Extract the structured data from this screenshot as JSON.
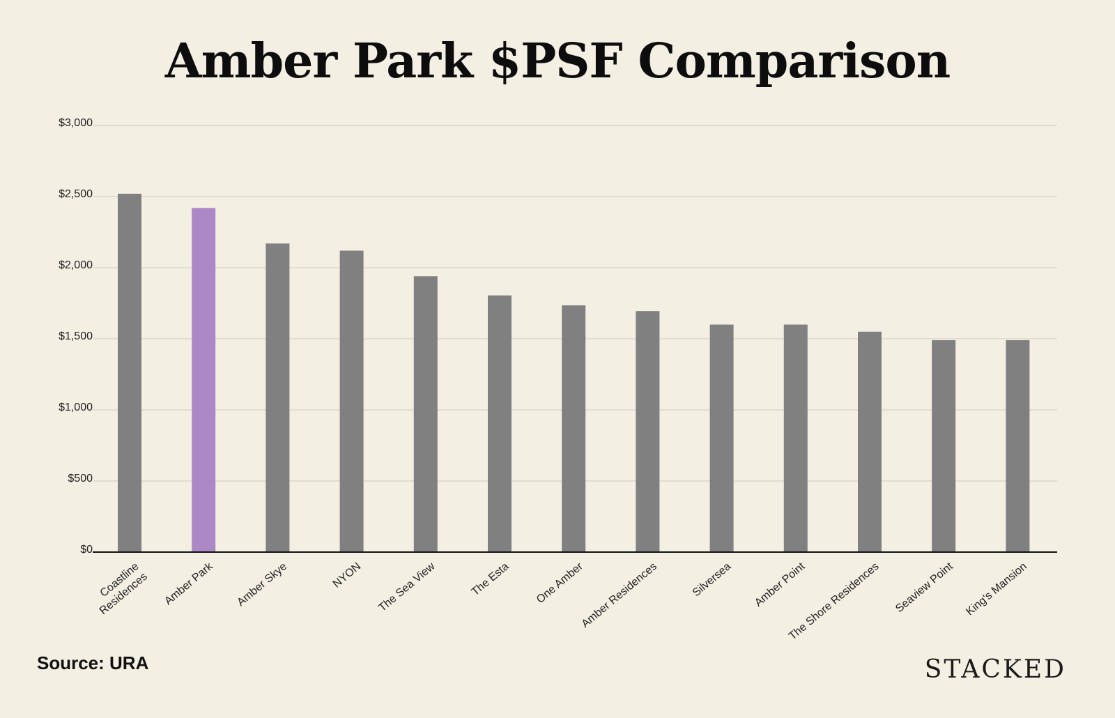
{
  "chart_data": {
    "type": "bar",
    "title": "Amber Park $PSF Comparison",
    "xlabel": "",
    "ylabel": "",
    "categories": [
      "Coastline Residences",
      "Amber Park",
      "Amber Skye",
      "NYON",
      "The Sea View",
      "The Esta",
      "One Amber",
      "Amber Residences",
      "Silversea",
      "Amber Point",
      "The Shore Residences",
      "Seaview Point",
      "King's Mansion"
    ],
    "category_lines": [
      [
        "Coastline",
        "Residences"
      ],
      [
        "Amber Park"
      ],
      [
        "Amber Skye"
      ],
      [
        "NYON"
      ],
      [
        "The Sea View"
      ],
      [
        "The Esta"
      ],
      [
        "One Amber"
      ],
      [
        "Amber Residences"
      ],
      [
        "Silversea"
      ],
      [
        "Amber Point"
      ],
      [
        "The Shore Residences"
      ],
      [
        "Seaview Point"
      ],
      [
        "King's Mansion"
      ]
    ],
    "values": [
      2520,
      2420,
      2170,
      2120,
      1940,
      1805,
      1735,
      1695,
      1600,
      1600,
      1550,
      1490,
      1490
    ],
    "highlight_index": 1,
    "ylim": [
      0,
      3000
    ],
    "yticks": [
      0,
      500,
      1000,
      1500,
      2000,
      2500,
      3000
    ],
    "ytick_labels": [
      "$0",
      "$500",
      "$1,000",
      "$1,500",
      "$2,000",
      "$2,500",
      "$3,000"
    ],
    "grid": true,
    "colors": {
      "bar": "#808080",
      "highlight": "#ad88c6",
      "grid": "#d9d5c9",
      "axis": "#111111",
      "background": "#f3efe3"
    }
  },
  "source": "Source: URA",
  "brand": "STACKED"
}
